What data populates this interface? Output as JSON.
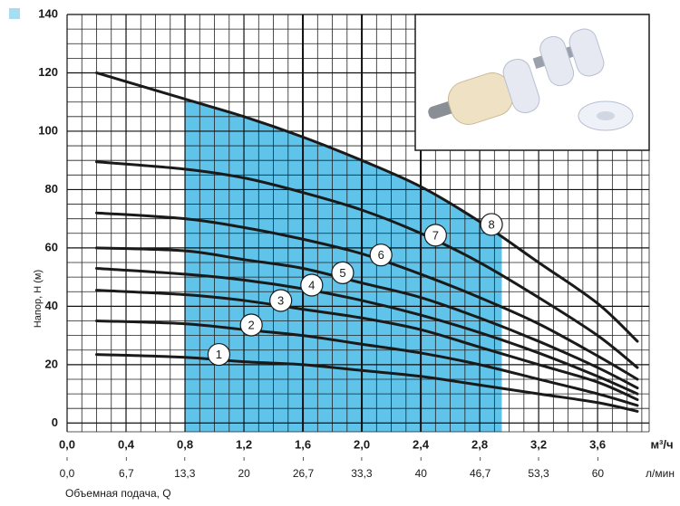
{
  "chart_data": {
    "type": "line",
    "y_label": "Напор, H (м)",
    "x_label": "Объемная подача, Q",
    "x_unit": "м³/ч",
    "x2_unit": "л/мин",
    "xlim": [
      0,
      3.95
    ],
    "ylim": [
      -3,
      140
    ],
    "x2lim": [
      0,
      65.8
    ],
    "xticks": [
      {
        "value": 0,
        "label": "0,0"
      },
      {
        "value": 0.4,
        "label": "0,4"
      },
      {
        "value": 0.8,
        "label": "0,8"
      },
      {
        "value": 1.2,
        "label": "1,2"
      },
      {
        "value": 1.6,
        "label": "1,6"
      },
      {
        "value": 2.0,
        "label": "2,0"
      },
      {
        "value": 2.4,
        "label": "2,4"
      },
      {
        "value": 2.8,
        "label": "2,8"
      },
      {
        "value": 3.2,
        "label": "3,2"
      },
      {
        "value": 3.6,
        "label": "3,6"
      }
    ],
    "x2ticks": [
      {
        "value": 0,
        "label": "0,0"
      },
      {
        "value": 6.7,
        "label": "6,7"
      },
      {
        "value": 13.3,
        "label": "13,3"
      },
      20,
      {
        "value": 26.7,
        "label": "26,7"
      },
      {
        "value": 33.3,
        "label": "33,3"
      },
      40,
      {
        "value": 46.7,
        "label": "46,7"
      },
      {
        "value": 53.3,
        "label": "53,3"
      },
      60
    ],
    "yticks": [
      0,
      20,
      40,
      60,
      80,
      100,
      120,
      140
    ],
    "grid": true,
    "grid_step": [
      0.1,
      5
    ],
    "major_x_lines": [
      1.6,
      2.0,
      2.4
    ],
    "shaded_range": [
      0.8,
      2.95
    ],
    "shade_color": "#5fc3ea",
    "x": [
      0.2,
      0.8,
      1.2,
      1.6,
      2.0,
      2.4,
      2.8,
      3.2,
      3.6,
      3.87
    ],
    "series": [
      {
        "name": "1",
        "color": "#1a1a1a",
        "values": [
          23.5,
          22.5,
          21,
          20,
          18,
          16,
          13,
          10,
          7,
          4
        ]
      },
      {
        "name": "2",
        "color": "#1a1a1a",
        "values": [
          35,
          34,
          32,
          30,
          27,
          24,
          20,
          15,
          10,
          6
        ]
      },
      {
        "name": "3",
        "color": "#1a1a1a",
        "values": [
          45.5,
          44,
          42,
          39,
          36,
          32,
          26,
          20,
          14,
          8
        ]
      },
      {
        "name": "4",
        "color": "#1a1a1a",
        "values": [
          53,
          51,
          49,
          46,
          42,
          37,
          31,
          24,
          16,
          10
        ]
      },
      {
        "name": "5",
        "color": "#1a1a1a",
        "values": [
          60,
          59,
          56,
          53,
          48,
          43,
          36,
          28,
          19,
          12
        ]
      },
      {
        "name": "6",
        "color": "#1a1a1a",
        "values": [
          72,
          70,
          67,
          63,
          58,
          51,
          43,
          34,
          23,
          15
        ]
      },
      {
        "name": "7",
        "color": "#1a1a1a",
        "values": [
          89.5,
          87,
          84,
          79,
          73,
          65,
          55,
          43,
          30,
          19
        ]
      },
      {
        "name": "8",
        "color": "#1a1a1a",
        "values": [
          120,
          111,
          105,
          98,
          90,
          81,
          69,
          55,
          41,
          28
        ]
      }
    ]
  }
}
